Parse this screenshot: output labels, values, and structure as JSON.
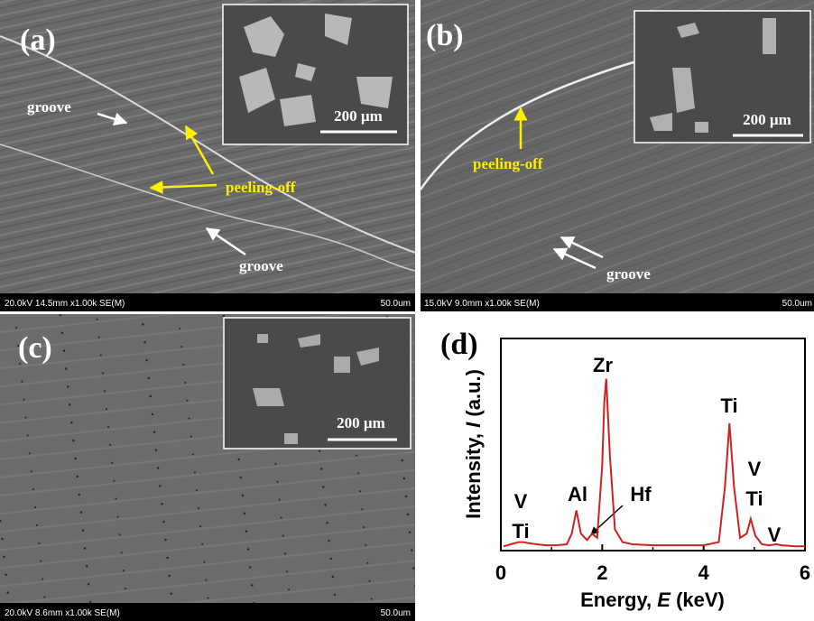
{
  "panels": [
    {
      "label": "(a)",
      "footer_left": "20.0kV 14.5mm x1.00k SE(M)",
      "footer_right": "50.0um",
      "scale": "200 µm",
      "annotations": [
        "groove",
        "peeling-off",
        "groove"
      ]
    },
    {
      "label": "(b)",
      "footer_left": "15.0kV 9.0mm x1.00k SE(M)",
      "footer_right": "50.0um",
      "scale": "200 µm",
      "annotations": [
        "peeling-off",
        "groove"
      ]
    },
    {
      "label": "(c)",
      "footer_left": "20.0kV 8.6mm x1.00k SE(M)",
      "footer_right": "50.0um",
      "scale": "200 µm",
      "annotations": []
    }
  ],
  "chart_data": {
    "type": "line",
    "panel_label": "(d)",
    "x_label": [
      "Energy, ",
      "E",
      " (keV)"
    ],
    "y_label": [
      "Intensity, ",
      "I",
      " (a.u.)"
    ],
    "x": [
      0.05,
      0.2,
      0.35,
      0.45,
      0.55,
      0.7,
      0.9,
      1.1,
      1.3,
      1.4,
      1.49,
      1.58,
      1.7,
      1.8,
      1.9,
      2.0,
      2.04,
      2.08,
      2.15,
      2.25,
      2.4,
      2.6,
      3.0,
      3.5,
      4.0,
      4.3,
      4.42,
      4.51,
      4.6,
      4.72,
      4.85,
      4.93,
      5.02,
      5.15,
      5.3,
      5.43,
      5.55,
      5.8,
      6.0
    ],
    "values": [
      2,
      3,
      4,
      4,
      3.5,
      3,
      2.5,
      2.5,
      3,
      8,
      19,
      8,
      5,
      8,
      6,
      40,
      70,
      81,
      45,
      10,
      4,
      3,
      2.5,
      2.5,
      2.5,
      4,
      30,
      60,
      30,
      6,
      8,
      15,
      7,
      3,
      2.5,
      3,
      2.5,
      2,
      2
    ],
    "color": "#cc2222",
    "xlim": [
      0,
      6
    ],
    "xticks": [
      0,
      2,
      4,
      6
    ],
    "ylim": [
      0,
      100
    ],
    "annotations": [
      "Zr",
      "Ti",
      "V",
      "Ti",
      "Al",
      "Hf",
      "V",
      "Ti",
      "V"
    ]
  }
}
